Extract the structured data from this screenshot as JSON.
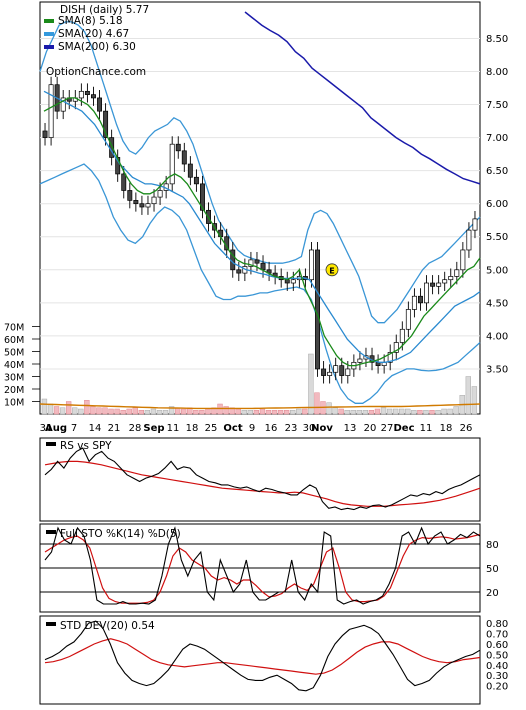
{
  "chart_data": [
    {
      "panel": "price",
      "type": "candlestick",
      "title": "DISH (daily) 5.77",
      "legend": [
        {
          "label": "SMA(8) 5.18",
          "color": "#1a8a1a"
        },
        {
          "label": "SMA(20) 4.67",
          "color": "#3399dd"
        },
        {
          "label": "SMA(200) 6.30",
          "color": "#1a1aaa"
        }
      ],
      "watermark": "OptionChance.com",
      "earnings_marker": "E",
      "y_ticks": [
        "8.50",
        "8.00",
        "7.50",
        "7.00",
        "6.50",
        "6.00",
        "5.50",
        "5.00",
        "4.50",
        "4.00",
        "3.50"
      ],
      "ylim": [
        3.0,
        8.9
      ],
      "volume_ticks": [
        "70M",
        "60M",
        "50M",
        "40M",
        "30M",
        "20M",
        "10M"
      ],
      "volume_lim": [
        0,
        72
      ],
      "x_ticks": [
        "31",
        "Aug",
        "7",
        "14",
        "21",
        "28",
        "Sep",
        "11",
        "18",
        "25",
        "Oct",
        "9",
        "16",
        "23",
        "30",
        "Nov",
        "13",
        "20",
        "27",
        "Dec",
        "11",
        "18",
        "26"
      ],
      "close": [
        7.0,
        7.8,
        7.4,
        7.6,
        7.55,
        7.6,
        7.7,
        7.65,
        7.6,
        7.4,
        7.0,
        6.7,
        6.45,
        6.2,
        6.05,
        6.0,
        5.95,
        6.0,
        6.1,
        6.2,
        6.3,
        6.9,
        6.8,
        6.6,
        6.4,
        6.3,
        5.9,
        5.7,
        5.6,
        5.5,
        5.3,
        5.0,
        4.95,
        5.05,
        5.15,
        5.1,
        5.0,
        4.95,
        4.9,
        4.85,
        4.8,
        4.85,
        4.9,
        4.85,
        5.3,
        3.5,
        3.4,
        3.45,
        3.55,
        3.4,
        3.5,
        3.6,
        3.65,
        3.7,
        3.6,
        3.55,
        3.6,
        3.75,
        3.9,
        4.1,
        4.4,
        4.6,
        4.5,
        4.8,
        4.75,
        4.8,
        4.85,
        4.9,
        5.0,
        5.3,
        5.6,
        5.77
      ],
      "sma8": [
        7.4,
        7.45,
        7.5,
        7.55,
        7.6,
        7.6,
        7.55,
        7.5,
        7.4,
        7.25,
        7.05,
        6.85,
        6.65,
        6.45,
        6.3,
        6.2,
        6.15,
        6.15,
        6.2,
        6.3,
        6.4,
        6.45,
        6.4,
        6.3,
        6.15,
        6.0,
        5.85,
        5.7,
        5.55,
        5.4,
        5.25,
        5.15,
        5.1,
        5.08,
        5.05,
        5.0,
        4.95,
        4.9,
        4.88,
        4.85,
        4.9,
        5.0,
        4.7,
        4.5,
        4.3,
        4.0,
        3.85,
        3.7,
        3.6,
        3.55,
        3.55,
        3.58,
        3.6,
        3.62,
        3.65,
        3.7,
        3.75,
        3.8,
        3.9,
        4.0,
        4.15,
        4.3,
        4.4,
        4.5,
        4.6,
        4.7,
        4.8,
        4.9,
        5.0,
        5.05,
        5.18
      ],
      "sma20": [
        7.7,
        7.65,
        7.6,
        7.55,
        7.5,
        7.45,
        7.4,
        7.3,
        7.2,
        7.05,
        6.9,
        6.75,
        6.6,
        6.5,
        6.4,
        6.35,
        6.3,
        6.3,
        6.28,
        6.25,
        6.2,
        6.15,
        6.1,
        6.0,
        5.85,
        5.7,
        5.55,
        5.4,
        5.3,
        5.2,
        5.1,
        5.05,
        5.0,
        4.98,
        4.95,
        4.93,
        4.9,
        4.88,
        4.87,
        4.87,
        4.87,
        4.88,
        4.85,
        4.7,
        4.55,
        4.4,
        4.25,
        4.1,
        3.95,
        3.85,
        3.75,
        3.68,
        3.63,
        3.6,
        3.6,
        3.62,
        3.65,
        3.7,
        3.75,
        3.85,
        3.95,
        4.05,
        4.15,
        4.25,
        4.35,
        4.45,
        4.5,
        4.55,
        4.6,
        4.67
      ],
      "sma200": [
        8.9,
        8.8,
        8.7,
        8.62,
        8.55,
        8.45,
        8.3,
        8.2,
        8.05,
        7.95,
        7.85,
        7.75,
        7.65,
        7.55,
        7.45,
        7.3,
        7.2,
        7.1,
        7.0,
        6.92,
        6.85,
        6.75,
        6.68,
        6.6,
        6.52,
        6.45,
        6.38,
        6.34,
        6.3
      ],
      "bb_upper": [
        8.0,
        8.3,
        8.5,
        8.7,
        8.75,
        8.75,
        8.7,
        8.6,
        8.4,
        8.1,
        7.8,
        7.5,
        7.2,
        6.95,
        6.8,
        6.75,
        6.85,
        7.0,
        7.1,
        7.15,
        7.2,
        7.3,
        7.25,
        7.1,
        6.9,
        6.6,
        6.3,
        6.0,
        5.75,
        5.6,
        5.45,
        5.3,
        5.22,
        5.18,
        5.15,
        5.12,
        5.1,
        5.1,
        5.1,
        5.12,
        5.15,
        5.2,
        5.6,
        5.85,
        5.9,
        5.85,
        5.7,
        5.5,
        5.3,
        5.1,
        4.9,
        4.6,
        4.3,
        4.2,
        4.2,
        4.3,
        4.4,
        4.55,
        4.7,
        4.85,
        5.0,
        5.1,
        5.15,
        5.2,
        5.3,
        5.4,
        5.5,
        5.6,
        5.7,
        5.8
      ],
      "bb_lower": [
        6.3,
        6.35,
        6.4,
        6.45,
        6.5,
        6.55,
        6.6,
        6.5,
        6.35,
        6.1,
        5.8,
        5.6,
        5.45,
        5.4,
        5.5,
        5.7,
        5.85,
        5.95,
        5.9,
        5.8,
        5.6,
        5.3,
        5.0,
        4.8,
        4.6,
        4.55,
        4.55,
        4.6,
        4.6,
        4.62,
        4.65,
        4.65,
        4.68,
        4.7,
        4.72,
        4.74,
        4.7,
        4.55,
        4.2,
        3.8,
        3.45,
        3.2,
        3.05,
        2.98,
        2.98,
        3.05,
        3.15,
        3.3,
        3.4,
        3.45,
        3.5,
        3.5,
        3.48,
        3.47,
        3.48,
        3.5,
        3.55,
        3.6,
        3.7,
        3.8,
        3.9
      ],
      "volume_m": [
        12,
        8,
        6,
        5,
        10,
        5,
        4,
        11,
        6,
        5,
        5,
        4,
        4,
        3,
        4,
        5,
        3,
        3,
        4,
        3,
        3,
        6,
        5,
        4,
        5,
        3,
        3,
        4,
        5,
        8,
        6,
        5,
        4,
        3,
        3,
        3,
        4,
        3,
        3,
        3,
        3,
        3,
        4,
        4,
        48,
        17,
        10,
        9,
        5,
        4,
        3,
        3,
        3,
        3,
        3,
        4,
        5,
        4,
        4,
        4,
        4,
        3,
        3,
        3,
        3,
        3,
        4,
        4,
        6,
        15,
        30,
        22
      ],
      "volume_avg_m": [
        8,
        7.8,
        7.6,
        7.4,
        7.2,
        7,
        6.8,
        6.6,
        6.4,
        6.2,
        6,
        5.8,
        5.6,
        5.4,
        5.2,
        5,
        4.9,
        4.8,
        4.7,
        4.6,
        4.5,
        4.5,
        4.5,
        4.5,
        4.5,
        4.5,
        4.5,
        4.5,
        4.6,
        4.7,
        4.8,
        4.9,
        5,
        5.1,
        5.2,
        5.3,
        5.4,
        5.5,
        5.6,
        5.7,
        5.8,
        5.9,
        6,
        6,
        6,
        6,
        6,
        6.2,
        6.4,
        6.6,
        6.8,
        7,
        7.2,
        7.4,
        7.6,
        7.8,
        8
      ]
    },
    {
      "panel": "rs",
      "type": "line",
      "legend": [
        {
          "label": "RS vs SPY",
          "color": "#000000"
        }
      ],
      "ylim": [
        0,
        1
      ],
      "series": [
        {
          "values": [
            0.6,
            0.68,
            0.8,
            0.7,
            0.85,
            0.95,
            1.0,
            0.8,
            0.9,
            0.95,
            0.85,
            0.8,
            0.7,
            0.6,
            0.55,
            0.5,
            0.55,
            0.58,
            0.62,
            0.7,
            0.8,
            0.68,
            0.72,
            0.7,
            0.6,
            0.55,
            0.5,
            0.48,
            0.45,
            0.45,
            0.42,
            0.4,
            0.42,
            0.38,
            0.35,
            0.4,
            0.38,
            0.35,
            0.33,
            0.3,
            0.3,
            0.38,
            0.45,
            0.4,
            0.2,
            0.1,
            0.12,
            0.08,
            0.1,
            0.08,
            0.12,
            0.1,
            0.14,
            0.15,
            0.12,
            0.15,
            0.2,
            0.25,
            0.3,
            0.28,
            0.32,
            0.3,
            0.35,
            0.32,
            0.38,
            0.42,
            0.45,
            0.5,
            0.55,
            0.6
          ]
        },
        {
          "values": [
            0.75,
            0.77,
            0.79,
            0.8,
            0.8,
            0.79,
            0.77,
            0.75,
            0.72,
            0.69,
            0.66,
            0.63,
            0.6,
            0.58,
            0.56,
            0.54,
            0.52,
            0.5,
            0.48,
            0.46,
            0.44,
            0.42,
            0.4,
            0.39,
            0.38,
            0.37,
            0.36,
            0.35,
            0.34,
            0.33,
            0.33,
            0.34,
            0.33,
            0.3,
            0.27,
            0.24,
            0.2,
            0.17,
            0.15,
            0.14,
            0.13,
            0.13,
            0.13,
            0.14,
            0.15,
            0.16,
            0.17,
            0.18,
            0.2,
            0.22,
            0.25,
            0.28,
            0.32,
            0.36,
            0.4
          ]
        }
      ]
    },
    {
      "panel": "stochastic",
      "type": "line",
      "legend": [
        {
          "label": "Full STO %K(14) %D(5)",
          "color": "#000000"
        }
      ],
      "y_ticks": [
        "80",
        "50",
        "20"
      ],
      "ylim": [
        0,
        100
      ],
      "series": [
        {
          "values": [
            60,
            70,
            100,
            85,
            80,
            100,
            90,
            60,
            10,
            5,
            5,
            5,
            8,
            5,
            5,
            6,
            5,
            10,
            40,
            80,
            100,
            60,
            40,
            60,
            70,
            20,
            10,
            60,
            40,
            20,
            30,
            60,
            20,
            10,
            10,
            15,
            20,
            20,
            60,
            20,
            10,
            30,
            20,
            95,
            90,
            10,
            5,
            8,
            10,
            5,
            8,
            10,
            15,
            30,
            50,
            90,
            95,
            80,
            100,
            80,
            90,
            95,
            80,
            85,
            92,
            88,
            95,
            90
          ]
        },
        {
          "values": [
            70,
            75,
            80,
            85,
            88,
            90,
            85,
            75,
            50,
            25,
            12,
            8,
            6,
            6,
            6,
            6,
            7,
            10,
            20,
            40,
            65,
            75,
            70,
            60,
            55,
            50,
            40,
            35,
            38,
            35,
            30,
            35,
            35,
            28,
            20,
            14,
            15,
            18,
            25,
            30,
            25,
            22,
            30,
            50,
            70,
            75,
            50,
            20,
            10,
            8,
            8,
            9,
            10,
            15,
            25,
            45,
            65,
            80,
            85,
            88,
            87,
            88,
            89,
            88,
            86,
            87,
            88,
            90,
            92
          ]
        }
      ]
    },
    {
      "panel": "stddev",
      "type": "line",
      "legend": [
        {
          "label": "STD DEV(20) 0.54",
          "color": "#000000"
        }
      ],
      "y_ticks": [
        "0.80",
        "0.70",
        "0.60",
        "0.50",
        "0.40",
        "0.30",
        "0.20"
      ],
      "ylim": [
        0.1,
        0.85
      ],
      "series": [
        {
          "values": [
            0.45,
            0.48,
            0.52,
            0.58,
            0.62,
            0.7,
            0.8,
            0.82,
            0.75,
            0.6,
            0.42,
            0.32,
            0.25,
            0.22,
            0.2,
            0.22,
            0.28,
            0.35,
            0.45,
            0.55,
            0.6,
            0.58,
            0.55,
            0.5,
            0.45,
            0.4,
            0.35,
            0.3,
            0.26,
            0.25,
            0.25,
            0.28,
            0.3,
            0.26,
            0.22,
            0.16,
            0.15,
            0.18,
            0.3,
            0.48,
            0.6,
            0.68,
            0.74,
            0.76,
            0.78,
            0.75,
            0.7,
            0.6,
            0.5,
            0.38,
            0.26,
            0.2,
            0.22,
            0.25,
            0.32,
            0.38,
            0.42,
            0.45,
            0.48,
            0.5,
            0.54
          ]
        },
        {
          "values": [
            0.42,
            0.43,
            0.45,
            0.48,
            0.52,
            0.56,
            0.6,
            0.63,
            0.65,
            0.63,
            0.6,
            0.55,
            0.5,
            0.45,
            0.42,
            0.4,
            0.39,
            0.38,
            0.39,
            0.4,
            0.41,
            0.42,
            0.42,
            0.41,
            0.4,
            0.39,
            0.38,
            0.37,
            0.36,
            0.35,
            0.34,
            0.33,
            0.32,
            0.31,
            0.32,
            0.35,
            0.4,
            0.46,
            0.52,
            0.57,
            0.6,
            0.62,
            0.62,
            0.6,
            0.56,
            0.52,
            0.48,
            0.45,
            0.43,
            0.42,
            0.43,
            0.45,
            0.46,
            0.47
          ]
        }
      ]
    }
  ]
}
